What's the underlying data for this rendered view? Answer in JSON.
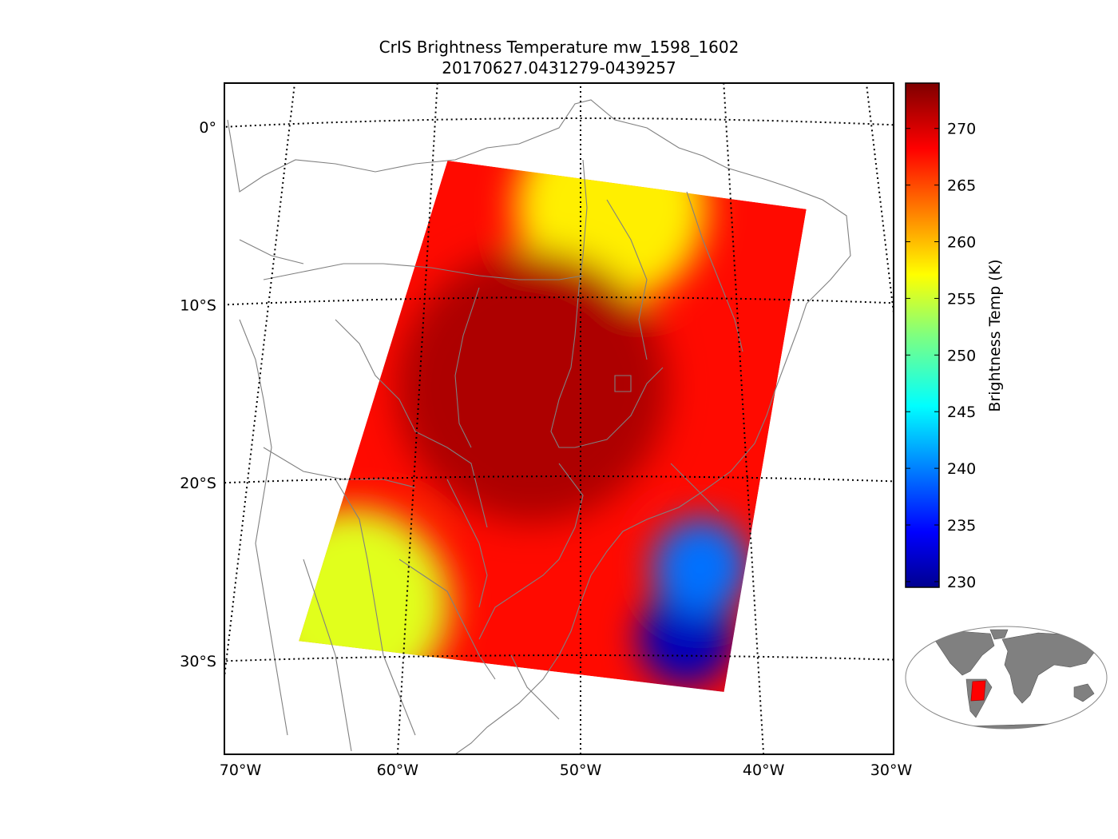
{
  "chart_data": {
    "type": "heatmap",
    "title": "CrIS Brightness Temperature mw_1598_1602",
    "subtitle": "20170627.0431279-0439257",
    "projection": "orthographic-like map of South America",
    "xlabel": "",
    "ylabel": "",
    "lon_range": [
      -75,
      -28
    ],
    "lat_range": [
      -35,
      2
    ],
    "lon_ticks": [
      {
        "value": -70,
        "label": "70°W"
      },
      {
        "value": -60,
        "label": "60°W"
      },
      {
        "value": -50,
        "label": "50°W"
      },
      {
        "value": -40,
        "label": "40°W"
      },
      {
        "value": -30,
        "label": "30°W"
      }
    ],
    "lat_ticks": [
      {
        "value": 0,
        "label": "0°"
      },
      {
        "value": -10,
        "label": "10°S"
      },
      {
        "value": -20,
        "label": "20°S"
      },
      {
        "value": -30,
        "label": "30°S"
      }
    ],
    "swath_corners": [
      {
        "lon": -59,
        "lat": -2.3
      },
      {
        "lon": -35,
        "lat": -4.9
      },
      {
        "lon": -42,
        "lat": -32
      },
      {
        "lon": -66,
        "lat": -29
      }
    ],
    "colorbar": {
      "label": "Brightness Temp (K)",
      "min": 229.5,
      "max": 274,
      "ticks": [
        230,
        235,
        240,
        245,
        250,
        255,
        260,
        265,
        270
      ],
      "colormap": "jet"
    },
    "field_regions": [
      {
        "description": "northern swath band",
        "lon": -48,
        "lat": -5,
        "value": 258
      },
      {
        "description": "central Brazil warm core",
        "lon": -53,
        "lat": -15,
        "value": 272
      },
      {
        "description": "cold pocket offshore",
        "lon": -44,
        "lat": -29,
        "value": 232
      },
      {
        "description": "cool area southeast",
        "lon": -43,
        "lat": -25,
        "value": 240
      },
      {
        "description": "southwest edge",
        "lon": -63,
        "lat": -27,
        "value": 256
      }
    ],
    "inset": {
      "description": "global locator map",
      "highlight_color": "#ff0000",
      "land_color": "#808080"
    }
  }
}
